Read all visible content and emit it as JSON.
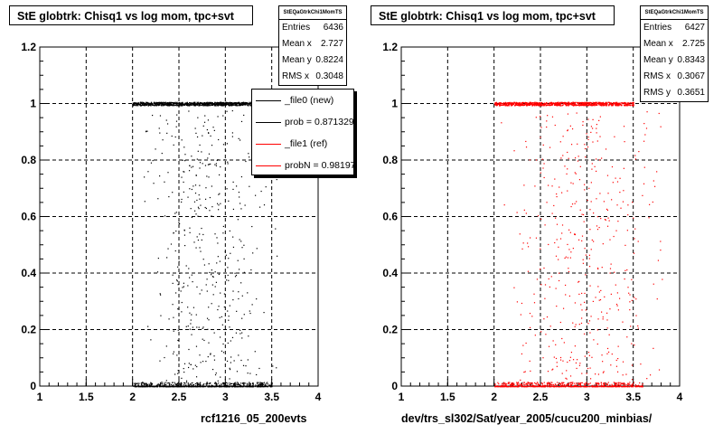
{
  "chart_data": [
    {
      "type": "scatter",
      "title": "StE globtrk: Chisq1 vs log mom, tpc+svt",
      "xlim": [
        1,
        4
      ],
      "ylim": [
        0,
        1.2
      ],
      "x_ticks": [
        "1",
        "1.5",
        "2",
        "2.5",
        "3",
        "3.5",
        "4"
      ],
      "y_ticks": [
        "0",
        "0.2",
        "0.4",
        "0.6",
        "0.8",
        "1",
        "1.2"
      ],
      "grid": true,
      "point_color": "#000000",
      "x_range_points": [
        2.0,
        3.6
      ],
      "series": [
        {
          "description": "dense band at y=1",
          "x_range": [
            2.0,
            3.3
          ],
          "y": 1.0
        },
        {
          "description": "dense band at y=0",
          "x_range": [
            2.0,
            3.5
          ],
          "y": 0.0
        }
      ],
      "stats": {
        "header": "StEQaGtrkChi1MomTS",
        "rows": [
          {
            "label": "Entries",
            "value": "6436"
          },
          {
            "label": "Mean x",
            "value": "2.727"
          },
          {
            "label": "Mean y",
            "value": "0.8224"
          },
          {
            "label": "RMS x",
            "value": "0.3048"
          }
        ]
      },
      "legend": {
        "placement": "top-right",
        "entries": [
          {
            "label": "_file0 (new)",
            "color": "#000000"
          },
          {
            "label": "prob = 0.871329",
            "color": "#000000"
          },
          {
            "label": "_file1 (ref)",
            "color": "#ff0000"
          },
          {
            "label": "probN = 0.981970",
            "color": "#ff0000"
          }
        ]
      },
      "footer": "rcf1216_05_200evts"
    },
    {
      "type": "scatter",
      "title": "StE globtrk: Chisq1 vs log mom, tpc+svt",
      "xlim": [
        1,
        4
      ],
      "ylim": [
        0,
        1.2
      ],
      "x_ticks": [
        "1",
        "1.5",
        "2",
        "2.5",
        "3",
        "3.5",
        "4"
      ],
      "y_ticks": [
        "0",
        "0.2",
        "0.4",
        "0.6",
        "0.8",
        "1",
        "1.2"
      ],
      "grid": true,
      "point_color": "#ff0000",
      "x_range_points": [
        2.0,
        3.9
      ],
      "series": [
        {
          "description": "dense band at y=1",
          "x_range": [
            2.0,
            3.5
          ],
          "y": 1.0
        },
        {
          "description": "dense band at y=0",
          "x_range": [
            2.0,
            3.6
          ],
          "y": 0.0
        }
      ],
      "stats": {
        "header": "StEQaGtrkChi1MomTS",
        "rows": [
          {
            "label": "Entries",
            "value": "6427"
          },
          {
            "label": "Mean x",
            "value": "2.725"
          },
          {
            "label": "Mean y",
            "value": "0.8343"
          },
          {
            "label": "RMS x",
            "value": "0.3067"
          },
          {
            "label": "RMS y",
            "value": "0.3651"
          }
        ]
      },
      "footer": "dev/trs_sl302/Sat/year_2005/cucu200_minbias/"
    }
  ]
}
